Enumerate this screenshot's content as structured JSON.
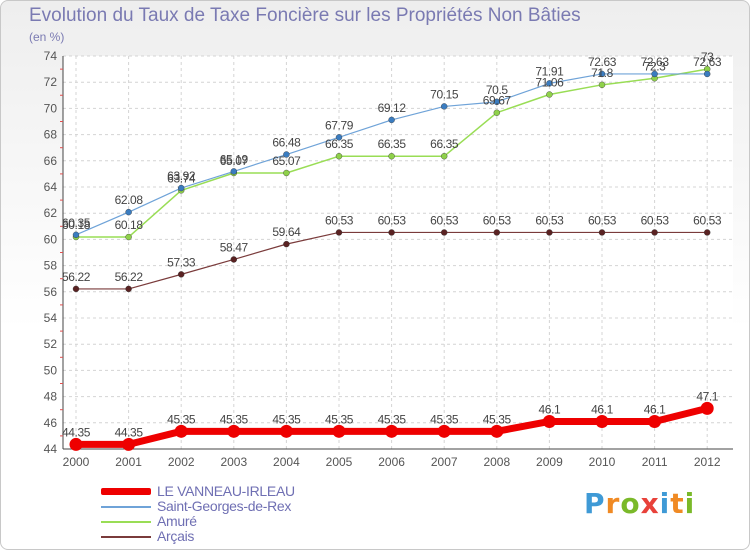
{
  "header": {
    "title": "Evolution du Taux de Taxe Foncière sur les Propriétés Non Bâties",
    "unit": "(en %)"
  },
  "logo": {
    "letters": [
      "P",
      "r",
      "o",
      "x",
      "i",
      "t",
      "i"
    ],
    "colors": [
      "#3f9ad6",
      "#f08a24",
      "#7ab929",
      "#e8413a",
      "#3f9ad6",
      "#f08a24",
      "#7ab929"
    ]
  },
  "chart_data": {
    "type": "line",
    "title": "Evolution du Taux de Taxe Foncière sur les Propriétés Non Bâties",
    "ylabel": "(en %)",
    "xlabel": "",
    "x": [
      "2000",
      "2001",
      "2002",
      "2003",
      "2004",
      "2005",
      "2006",
      "2007",
      "2008",
      "2009",
      "2010",
      "2011",
      "2012"
    ],
    "ylim": [
      44,
      74
    ],
    "yticks": [
      44,
      46,
      48,
      50,
      52,
      54,
      56,
      58,
      60,
      62,
      64,
      66,
      68,
      70,
      72,
      74
    ],
    "grid": true,
    "legend_position": "bottom-left",
    "series": [
      {
        "name": "LE VANNEAU-IRLEAU",
        "color": "#ee0000",
        "values": [
          44.35,
          44.35,
          45.35,
          45.35,
          45.35,
          45.35,
          45.35,
          45.35,
          45.35,
          46.1,
          46.1,
          46.1,
          47.1
        ],
        "labels": [
          "44.35",
          "44.35",
          "45.35",
          "45.35",
          "45.35",
          "45.35",
          "45.35",
          "45.35",
          "45.35",
          "46.1",
          "46.1",
          "46.1",
          "47.1"
        ]
      },
      {
        "name": "Saint-Georges-de-Rex",
        "color": "#6fa3d8",
        "values": [
          60.35,
          62.08,
          63.92,
          65.19,
          66.48,
          67.79,
          69.12,
          70.15,
          70.5,
          71.91,
          72.63,
          72.63,
          72.63
        ],
        "labels": [
          "60.35",
          "62.08",
          "63.92",
          "65.19",
          "66.48",
          "67.79",
          "69.12",
          "70.15",
          "70.5",
          "71.91",
          "72.63",
          "72.63",
          "72.63"
        ]
      },
      {
        "name": "Amuré",
        "color": "#99dd55",
        "values": [
          60.18,
          60.18,
          63.74,
          65.07,
          65.07,
          66.35,
          66.35,
          66.35,
          69.67,
          71.06,
          71.8,
          72.3,
          73
        ],
        "labels": [
          "60.18",
          "60.18",
          "63.74",
          "65.07",
          "65.07",
          "66.35",
          "66.35",
          "66.35",
          "69.67",
          "71.06",
          "71.8",
          "72.3",
          "73"
        ]
      },
      {
        "name": "Arçais",
        "color": "#7a3b3b",
        "values": [
          56.22,
          56.22,
          57.33,
          58.47,
          59.64,
          60.53,
          60.53,
          60.53,
          60.53,
          60.53,
          60.53,
          60.53,
          60.53
        ],
        "labels": [
          "56.22",
          "56.22",
          "57.33",
          "58.47",
          "59.64",
          "60.53",
          "60.53",
          "60.53",
          "60.53",
          "60.53",
          "60.53",
          "60.53",
          "60.53"
        ]
      }
    ]
  }
}
